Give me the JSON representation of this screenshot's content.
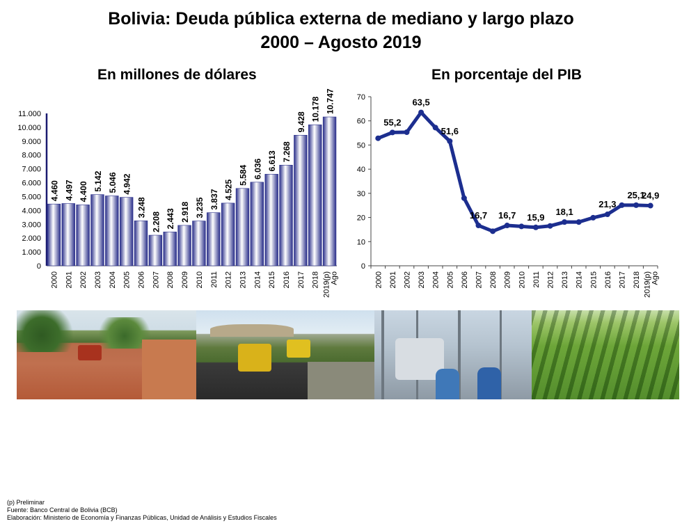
{
  "header": {
    "title_line1": "Bolivia: Deuda pública externa de mediano y largo plazo",
    "title_line2": "2000 – Agosto 2019"
  },
  "colors": {
    "bar_dark": "#2a2f8a",
    "bar_light": "#ffffff",
    "line": "#1c2e8f",
    "axis": "#1a1a70"
  },
  "chart_data": [
    {
      "type": "bar",
      "title": "En millones de dólares",
      "categories": [
        "2000",
        "2001",
        "2002",
        "2003",
        "2004",
        "2005",
        "2006",
        "2007",
        "2008",
        "2009",
        "2010",
        "2011",
        "2012",
        "2013",
        "2014",
        "2015",
        "2016",
        "2017",
        "2018",
        "2019(p)\nAgo"
      ],
      "values": [
        4460,
        4497,
        4400,
        5142,
        5046,
        4942,
        3248,
        2208,
        2443,
        2918,
        3235,
        3837,
        4525,
        5584,
        6036,
        6613,
        7268,
        9428,
        10178,
        10747
      ],
      "value_labels": [
        "4.460",
        "4.497",
        "4.400",
        "5.142",
        "5.046",
        "4.942",
        "3.248",
        "2.208",
        "2.443",
        "2.918",
        "3.235",
        "3.837",
        "4.525",
        "5.584",
        "6.036",
        "6.613",
        "7.268",
        "9.428",
        "10.178",
        "10.747"
      ],
      "ylim": [
        0,
        11000
      ],
      "yticks": [
        0,
        1000,
        2000,
        3000,
        4000,
        5000,
        6000,
        7000,
        8000,
        9000,
        10000,
        11000
      ],
      "ytick_labels": [
        "0",
        "1.000",
        "2.000",
        "3.000",
        "4.000",
        "5.000",
        "6.000",
        "7.000",
        "8.000",
        "9.000",
        "10.000",
        "11.000"
      ],
      "grid": false
    },
    {
      "type": "line",
      "title": "En porcentaje del PIB",
      "categories": [
        "2000",
        "2001",
        "2002",
        "2003",
        "2004",
        "2005",
        "2006",
        "2007",
        "2008",
        "2009",
        "2010",
        "2011",
        "2012",
        "2013",
        "2014",
        "2015",
        "2016",
        "2017",
        "2018",
        "2019(p)\nAgo"
      ],
      "values": [
        52.8,
        55.2,
        55.3,
        63.5,
        57.2,
        51.6,
        28.0,
        16.7,
        14.3,
        16.7,
        16.3,
        15.9,
        16.5,
        18.1,
        18.1,
        19.9,
        21.3,
        25.1,
        25.1,
        24.9
      ],
      "labels": [
        {
          "index": 1,
          "text": "55,2"
        },
        {
          "index": 3,
          "text": "63,5"
        },
        {
          "index": 5,
          "text": "51,6"
        },
        {
          "index": 7,
          "text": "16,7"
        },
        {
          "index": 9,
          "text": "16,7"
        },
        {
          "index": 11,
          "text": "15,9"
        },
        {
          "index": 13,
          "text": "18,1"
        },
        {
          "index": 16,
          "text": "21,3"
        },
        {
          "index": 18,
          "text": "25,1"
        },
        {
          "index": 19,
          "text": "24,9"
        }
      ],
      "ylim": [
        0,
        70
      ],
      "yticks": [
        0,
        10,
        20,
        30,
        40,
        50,
        60,
        70
      ],
      "ytick_labels": [
        "0",
        "10",
        "20",
        "30",
        "40",
        "50",
        "60",
        "70"
      ],
      "grid": false
    }
  ],
  "photos": [
    {
      "name": "road-construction-photo"
    },
    {
      "name": "asphalt-paving-photo"
    },
    {
      "name": "electric-substation-photo"
    },
    {
      "name": "crop-field-photo"
    }
  ],
  "notes": {
    "preliminar": "(p) Preliminar",
    "fuente": "Fuente: Banco Central de Bolivia (BCB)",
    "elaboracion": "Elaboración: Ministerio de Economía y Finanzas Públicas, Unidad de Análisis y Estudios Fiscales"
  }
}
